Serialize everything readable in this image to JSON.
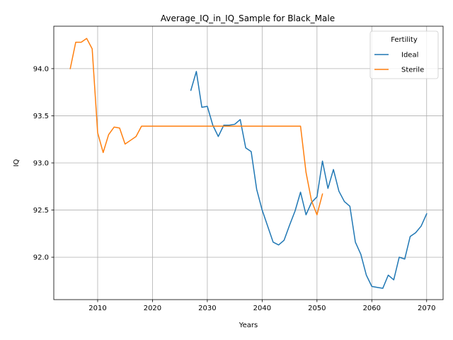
{
  "chart_data": {
    "type": "line",
    "title": "Average_IQ_in_IQ_Sample for Black_Male",
    "xlabel": "Years",
    "ylabel": "IQ",
    "xlim": [
      2002,
      2073
    ],
    "ylim": [
      91.55,
      94.45
    ],
    "xticks": [
      2010,
      2020,
      2030,
      2040,
      2050,
      2060,
      2070
    ],
    "yticks": [
      92.0,
      92.5,
      93.0,
      93.5,
      94.0
    ],
    "ytick_labels": [
      "92.0",
      "92.5",
      "93.0",
      "93.5",
      "94.0"
    ],
    "grid": true,
    "legend": {
      "title": "Fertility",
      "placement": "top-right"
    },
    "series": [
      {
        "name": "Ideal",
        "color": "#1f77b4",
        "x": [
          2027,
          2028,
          2029,
          2030,
          2031,
          2032,
          2033,
          2034,
          2035,
          2036,
          2037,
          2038,
          2039,
          2040,
          2041,
          2042,
          2043,
          2044,
          2045,
          2046,
          2047,
          2048,
          2049,
          2050,
          2051,
          2052,
          2053,
          2054,
          2055,
          2056,
          2057,
          2058,
          2059,
          2060,
          2061,
          2062,
          2063,
          2064,
          2065,
          2066,
          2067,
          2068,
          2069,
          2070
        ],
        "y": [
          93.77,
          93.97,
          93.59,
          93.6,
          93.4,
          93.28,
          93.4,
          93.4,
          93.41,
          93.46,
          93.16,
          93.12,
          92.72,
          92.5,
          92.33,
          92.16,
          92.13,
          92.18,
          92.34,
          92.49,
          92.69,
          92.45,
          92.58,
          92.64,
          93.02,
          92.73,
          92.93,
          92.7,
          92.59,
          92.54,
          92.16,
          92.03,
          91.81,
          91.69,
          91.68,
          91.67,
          91.81,
          91.76,
          92.0,
          91.98,
          92.22,
          92.26,
          92.33,
          92.46
        ]
      },
      {
        "name": "Sterile",
        "color": "#ff7f0e",
        "x": [
          2005,
          2006,
          2007,
          2008,
          2009,
          2010,
          2011,
          2012,
          2013,
          2014,
          2015,
          2016,
          2017,
          2018,
          2019,
          2020,
          2021,
          2022,
          2023,
          2024,
          2025,
          2026,
          2027,
          2028,
          2029,
          2030,
          2031,
          2032,
          2033,
          2034,
          2035,
          2036,
          2037,
          2038,
          2039,
          2040,
          2041,
          2042,
          2043,
          2044,
          2045,
          2046,
          2047,
          2048,
          2049,
          2050,
          2051
        ],
        "y": [
          94.0,
          94.28,
          94.28,
          94.32,
          94.21,
          93.32,
          93.11,
          93.3,
          93.38,
          93.37,
          93.2,
          93.24,
          93.28,
          93.39,
          93.39,
          93.39,
          93.39,
          93.39,
          93.39,
          93.39,
          93.39,
          93.39,
          93.39,
          93.39,
          93.39,
          93.39,
          93.39,
          93.39,
          93.39,
          93.39,
          93.39,
          93.39,
          93.39,
          93.39,
          93.39,
          93.39,
          93.39,
          93.39,
          93.39,
          93.39,
          93.39,
          93.39,
          93.39,
          92.9,
          92.6,
          92.45,
          92.67
        ]
      }
    ]
  }
}
